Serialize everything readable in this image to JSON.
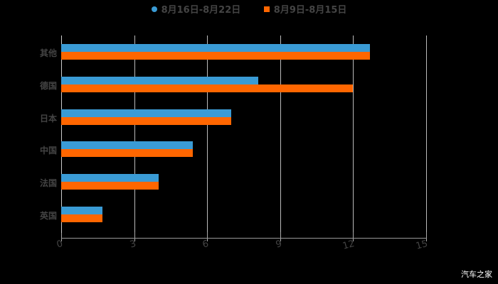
{
  "chart_data": {
    "type": "bar",
    "orientation": "horizontal",
    "title": "",
    "categories": [
      "其他",
      "德国",
      "日本",
      "中国",
      "法国",
      "英国"
    ],
    "series": [
      {
        "name": "8月16日-8月22日",
        "color": "#3a9bd5",
        "marker": "circle",
        "values": [
          12.7,
          8.1,
          7.0,
          5.4,
          4.0,
          1.7
        ]
      },
      {
        "name": "8月9日-8月15日",
        "color": "#ff6600",
        "marker": "square",
        "values": [
          12.7,
          12.0,
          7.0,
          5.4,
          4.0,
          1.7
        ]
      }
    ],
    "xlabel": "",
    "ylabel": "",
    "xlim": [
      0,
      15
    ],
    "xticks": [
      "0",
      "3",
      "6",
      "9",
      "12",
      "15"
    ],
    "grid": "vertical",
    "legend_position": "top"
  },
  "legend": {
    "series_a": "8月16日-8月22日",
    "series_b": "8月9日-8月15日"
  },
  "watermark": "汽车之家"
}
